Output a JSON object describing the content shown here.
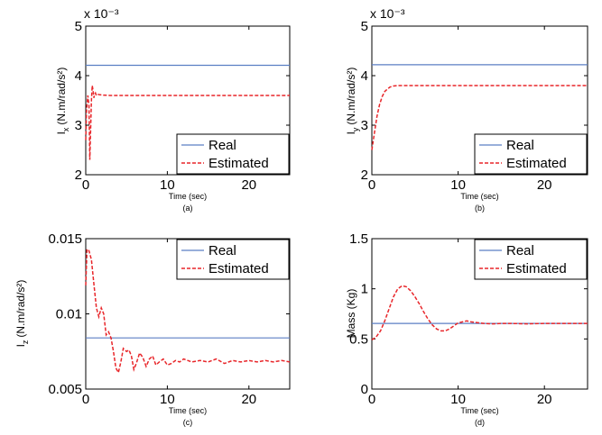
{
  "colors": {
    "real": "#5b7fc4",
    "estimated": "#e8262a"
  },
  "chart_data": [
    {
      "id": "a",
      "type": "line",
      "panel_label": "(a)",
      "xlabel": "Time (sec)",
      "ylabel": "I",
      "ylabel_sub": "x",
      "ylabel_units": "(N.m/rad/s²)",
      "y_multiplier": "x 10⁻³",
      "xlim": [
        0,
        25
      ],
      "ylim": [
        0.002,
        0.005
      ],
      "xticks": [
        0,
        10,
        20
      ],
      "xtick_labels": [
        "0",
        "10",
        "20"
      ],
      "yticks": [
        0.002,
        0.003,
        0.004,
        0.005
      ],
      "ytick_labels": [
        "2",
        "3",
        "4",
        "5"
      ],
      "legend_position": "bottom-right",
      "series": [
        {
          "name": "Real",
          "style": "solid",
          "color": "#5b7fc4",
          "x": [
            0,
            25
          ],
          "y": [
            0.00421,
            0.00421
          ]
        },
        {
          "name": "Estimated",
          "style": "dashed",
          "color": "#e8262a",
          "x": [
            0,
            0.1,
            0.25,
            0.4,
            0.5,
            0.6,
            0.7,
            0.8,
            0.9,
            1.0,
            1.1,
            1.2,
            1.3,
            1.5,
            2,
            3,
            25
          ],
          "y": [
            0.0027,
            0.0033,
            0.0036,
            0.0034,
            0.0023,
            0.0029,
            0.0035,
            0.0038,
            0.0037,
            0.00355,
            0.00362,
            0.00365,
            0.0036,
            0.00362,
            0.00361,
            0.0036,
            0.0036
          ]
        }
      ]
    },
    {
      "id": "b",
      "type": "line",
      "panel_label": "(b)",
      "xlabel": "Time (sec)",
      "ylabel": "I",
      "ylabel_sub": "y",
      "ylabel_units": "(N.m/rad/s²)",
      "y_multiplier": "x 10⁻³",
      "xlim": [
        0,
        25
      ],
      "ylim": [
        0.002,
        0.005
      ],
      "xticks": [
        0,
        10,
        20
      ],
      "xtick_labels": [
        "0",
        "10",
        "20"
      ],
      "yticks": [
        0.002,
        0.003,
        0.004,
        0.005
      ],
      "ytick_labels": [
        "2",
        "3",
        "4",
        "5"
      ],
      "legend_position": "bottom-right",
      "series": [
        {
          "name": "Real",
          "style": "solid",
          "color": "#5b7fc4",
          "x": [
            0,
            25
          ],
          "y": [
            0.00422,
            0.00422
          ]
        },
        {
          "name": "Estimated",
          "style": "dashed",
          "color": "#e8262a",
          "x": [
            0,
            0.3,
            0.6,
            0.9,
            1.2,
            1.5,
            1.8,
            2.1,
            2.5,
            3,
            4,
            25
          ],
          "y": [
            0.0025,
            0.00285,
            0.00318,
            0.00342,
            0.00358,
            0.00368,
            0.00373,
            0.00377,
            0.00379,
            0.0038,
            0.0038,
            0.0038
          ]
        }
      ]
    },
    {
      "id": "c",
      "type": "line",
      "panel_label": "(c)",
      "xlabel": "Time (sec)",
      "ylabel": "I",
      "ylabel_sub": "z",
      "ylabel_units": "(N.m/rad/s²)",
      "y_multiplier": "",
      "xlim": [
        0,
        25
      ],
      "ylim": [
        0.005,
        0.015
      ],
      "xticks": [
        0,
        10,
        20
      ],
      "xtick_labels": [
        "0",
        "10",
        "20"
      ],
      "yticks": [
        0.005,
        0.01,
        0.015
      ],
      "ytick_labels": [
        "0.005",
        "0.01",
        "0.015"
      ],
      "legend_position": "top-right",
      "series": [
        {
          "name": "Real",
          "style": "solid",
          "color": "#5b7fc4",
          "x": [
            0,
            25
          ],
          "y": [
            0.0084,
            0.0084
          ]
        },
        {
          "name": "Estimated",
          "style": "dashed",
          "color": "#e8262a",
          "x": [
            0,
            0.15,
            0.4,
            0.7,
            1.0,
            1.3,
            1.6,
            1.9,
            2.2,
            2.5,
            2.8,
            3.1,
            3.4,
            3.7,
            4.0,
            4.3,
            4.6,
            5.0,
            5.3,
            5.6,
            5.9,
            6.2,
            6.6,
            7.0,
            7.4,
            7.8,
            8.2,
            8.6,
            9.0,
            9.5,
            10.0,
            10.5,
            11.0,
            11.5,
            12.0,
            13,
            14,
            15,
            16,
            17,
            18,
            19,
            20,
            21,
            22,
            23,
            24,
            25
          ],
          "y": [
            0.0119,
            0.0143,
            0.0142,
            0.0136,
            0.012,
            0.0104,
            0.0098,
            0.0104,
            0.01,
            0.0086,
            0.0088,
            0.0084,
            0.0075,
            0.0064,
            0.0061,
            0.0068,
            0.0077,
            0.0075,
            0.0076,
            0.0072,
            0.0063,
            0.0067,
            0.0074,
            0.0071,
            0.0065,
            0.007,
            0.0072,
            0.0066,
            0.0068,
            0.007,
            0.0066,
            0.0067,
            0.0069,
            0.0068,
            0.007,
            0.0068,
            0.0069,
            0.0068,
            0.007,
            0.0067,
            0.0069,
            0.0068,
            0.0069,
            0.0068,
            0.0069,
            0.0068,
            0.0069,
            0.0068
          ]
        }
      ]
    },
    {
      "id": "d",
      "type": "line",
      "panel_label": "(d)",
      "xlabel": "Time (sec)",
      "ylabel": "Mass (Kg)",
      "ylabel_sub": "",
      "ylabel_units": "",
      "y_multiplier": "",
      "xlim": [
        0,
        25
      ],
      "ylim": [
        0,
        1.5
      ],
      "xticks": [
        0,
        10,
        20
      ],
      "xtick_labels": [
        "0",
        "10",
        "20"
      ],
      "yticks": [
        0,
        0.5,
        1,
        1.5
      ],
      "ytick_labels": [
        "0",
        "0.5",
        "1",
        "1.5"
      ],
      "legend_position": "top-right",
      "series": [
        {
          "name": "Real",
          "style": "solid",
          "color": "#5b7fc4",
          "x": [
            0,
            25
          ],
          "y": [
            0.655,
            0.655
          ]
        },
        {
          "name": "Estimated",
          "style": "dashed",
          "color": "#e8262a",
          "x": [
            0,
            0.5,
            1,
            1.5,
            2,
            2.5,
            3,
            3.5,
            4,
            4.5,
            5,
            5.5,
            6,
            6.5,
            7,
            7.5,
            8,
            8.5,
            9,
            9.5,
            10,
            10.5,
            11,
            11.5,
            12,
            13,
            14,
            15,
            16,
            18,
            20,
            25
          ],
          "y": [
            0.49,
            0.52,
            0.58,
            0.68,
            0.8,
            0.92,
            1.0,
            1.03,
            1.02,
            0.98,
            0.92,
            0.85,
            0.77,
            0.7,
            0.64,
            0.6,
            0.58,
            0.58,
            0.6,
            0.63,
            0.66,
            0.67,
            0.68,
            0.67,
            0.665,
            0.655,
            0.65,
            0.655,
            0.655,
            0.65,
            0.655,
            0.655
          ]
        }
      ]
    }
  ]
}
